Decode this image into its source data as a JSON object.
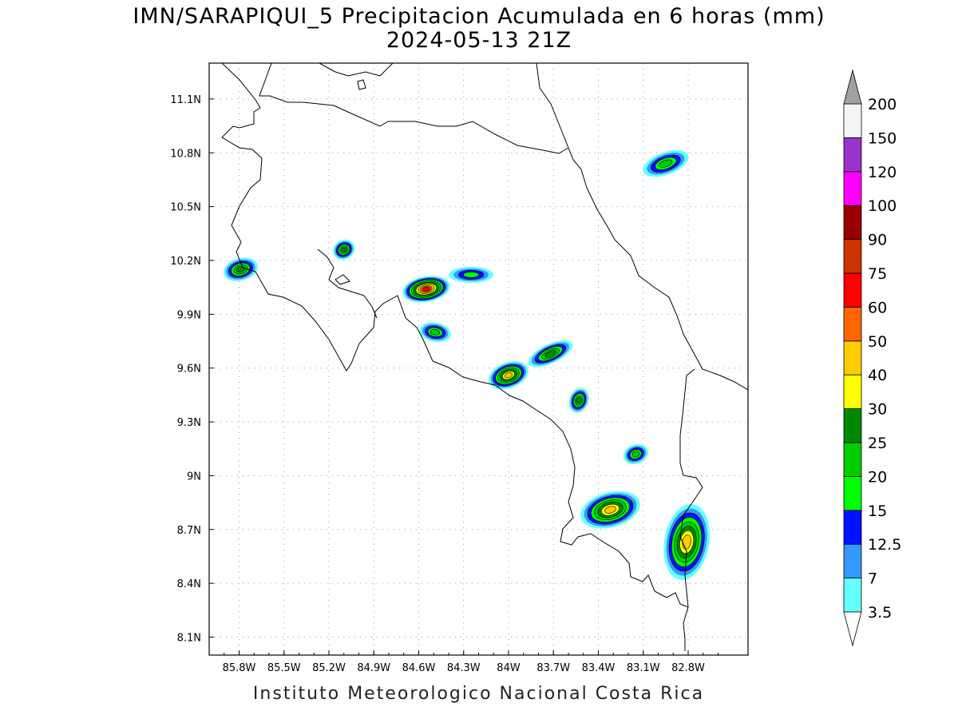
{
  "title": {
    "line1": "IMN/SARAPIQUI_5 Precipitacion Acumulada en 6 horas (mm)",
    "line2": "2024-05-13 21Z"
  },
  "footer": "Instituto Meteorologico Nacional Costa Rica",
  "map": {
    "lon_range": [
      -86.0,
      -82.4
    ],
    "lat_range": [
      8.0,
      11.3
    ],
    "lon_ticks": [
      {
        "value": -85.8,
        "label": "85.8W"
      },
      {
        "value": -85.5,
        "label": "85.5W"
      },
      {
        "value": -85.2,
        "label": "85.2W"
      },
      {
        "value": -84.9,
        "label": "84.9W"
      },
      {
        "value": -84.6,
        "label": "84.6W"
      },
      {
        "value": -84.3,
        "label": "84.3W"
      },
      {
        "value": -84.0,
        "label": "84W"
      },
      {
        "value": -83.7,
        "label": "83.7W"
      },
      {
        "value": -83.4,
        "label": "83.4W"
      },
      {
        "value": -83.1,
        "label": "83.1W"
      },
      {
        "value": -82.8,
        "label": "82.8W"
      }
    ],
    "lat_ticks": [
      {
        "value": 8.1,
        "label": "8.1N"
      },
      {
        "value": 8.4,
        "label": "8.4N"
      },
      {
        "value": 8.7,
        "label": "8.7N"
      },
      {
        "value": 9.0,
        "label": "9N"
      },
      {
        "value": 9.3,
        "label": "9.3N"
      },
      {
        "value": 9.6,
        "label": "9.6N"
      },
      {
        "value": 9.9,
        "label": "9.9N"
      },
      {
        "value": 10.2,
        "label": "10.2N"
      },
      {
        "value": 10.5,
        "label": "10.5N"
      },
      {
        "value": 10.8,
        "label": "10.8N"
      },
      {
        "value": 11.1,
        "label": "11.1N"
      }
    ],
    "grid": "dotted",
    "precip_cells": [
      {
        "lon": -85.79,
        "lat": 10.15,
        "max_mm": 25
      },
      {
        "lon": -85.1,
        "lat": 10.26,
        "max_mm": 25
      },
      {
        "lon": -84.55,
        "lat": 10.04,
        "max_mm": 60
      },
      {
        "lon": -84.25,
        "lat": 10.12,
        "max_mm": 15
      },
      {
        "lon": -84.0,
        "lat": 9.56,
        "max_mm": 40
      },
      {
        "lon": -83.72,
        "lat": 9.68,
        "max_mm": 25
      },
      {
        "lon": -84.49,
        "lat": 9.8,
        "max_mm": 20
      },
      {
        "lon": -83.53,
        "lat": 9.42,
        "max_mm": 25
      },
      {
        "lon": -83.32,
        "lat": 8.81,
        "max_mm": 40
      },
      {
        "lon": -82.81,
        "lat": 8.63,
        "max_mm": 40
      },
      {
        "lon": -82.95,
        "lat": 10.74,
        "max_mm": 20
      },
      {
        "lon": -83.15,
        "lat": 9.12,
        "max_mm": 20
      }
    ]
  },
  "colorbar": {
    "levels": [
      "3.5",
      "7",
      "12.5",
      "15",
      "20",
      "25",
      "30",
      "40",
      "50",
      "60",
      "75",
      "90",
      "100",
      "120",
      "150",
      "200"
    ],
    "colors": [
      "#66ffff",
      "#3399ff",
      "#0011ff",
      "#00ff00",
      "#00cc00",
      "#008800",
      "#ffff00",
      "#ffcc00",
      "#ff6600",
      "#ff0000",
      "#cc3300",
      "#990000",
      "#ff00ff",
      "#9933cc",
      "#f4f4f4",
      "#a0a0a0"
    ]
  }
}
